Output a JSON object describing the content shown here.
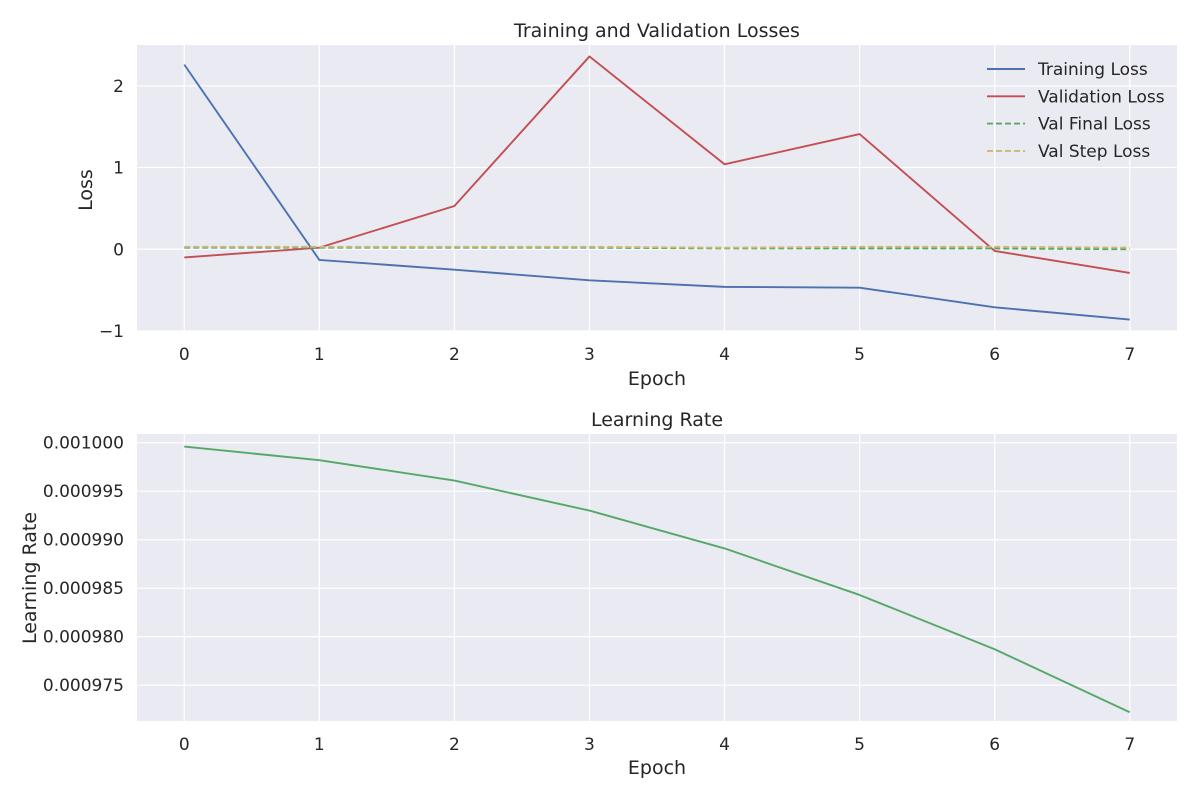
{
  "chart_data": [
    {
      "type": "line",
      "title": "Training and Validation Losses",
      "xlabel": "Epoch",
      "ylabel": "Loss",
      "x": [
        0,
        1,
        2,
        3,
        4,
        5,
        6,
        7
      ],
      "xticks": [
        "0",
        "1",
        "2",
        "3",
        "4",
        "5",
        "6",
        "7"
      ],
      "xlim": [
        -0.35,
        7.35
      ],
      "ylim": [
        -1.0,
        2.5
      ],
      "yticks": [
        -1,
        0,
        1,
        2
      ],
      "ytick_labels": [
        "−1",
        "0",
        "1",
        "2"
      ],
      "grid": true,
      "legend_position": "top-right",
      "series": [
        {
          "name": "Training Loss",
          "color": "#4C72B0",
          "style": "solid",
          "values": [
            2.26,
            -0.13,
            -0.25,
            -0.38,
            -0.46,
            -0.47,
            -0.71,
            -0.86
          ]
        },
        {
          "name": "Validation Loss",
          "color": "#C44E52",
          "style": "solid",
          "values": [
            -0.1,
            0.02,
            0.53,
            2.36,
            1.04,
            1.41,
            -0.02,
            -0.29
          ]
        },
        {
          "name": "Val Final Loss",
          "color": "#55A868",
          "style": "dashed",
          "values": [
            0.02,
            0.02,
            0.02,
            0.02,
            0.01,
            0.01,
            0.01,
            0.0
          ]
        },
        {
          "name": "Val Step Loss",
          "color": "#CCB974",
          "style": "dashed",
          "values": [
            0.03,
            0.03,
            0.03,
            0.03,
            0.02,
            0.03,
            0.03,
            0.02
          ]
        }
      ]
    },
    {
      "type": "line",
      "title": "Learning Rate",
      "xlabel": "Epoch",
      "ylabel": "Learning Rate",
      "x": [
        0,
        1,
        2,
        3,
        4,
        5,
        6,
        7
      ],
      "xticks": [
        "0",
        "1",
        "2",
        "3",
        "4",
        "5",
        "6",
        "7"
      ],
      "xlim": [
        -0.35,
        7.35
      ],
      "ylim": [
        0.0009713,
        0.0010009
      ],
      "yticks": [
        0.000975,
        0.00098,
        0.000985,
        0.00099,
        0.000995,
        0.001
      ],
      "ytick_labels": [
        "0.000975",
        "0.000980",
        "0.000985",
        "0.000990",
        "0.000995",
        "0.001000"
      ],
      "grid": true,
      "series": [
        {
          "color": "#55A868",
          "style": "solid",
          "values": [
            0.0009996,
            0.0009982,
            0.0009961,
            0.000993,
            0.0009891,
            0.0009843,
            0.0009787,
            0.0009722
          ]
        }
      ]
    }
  ]
}
